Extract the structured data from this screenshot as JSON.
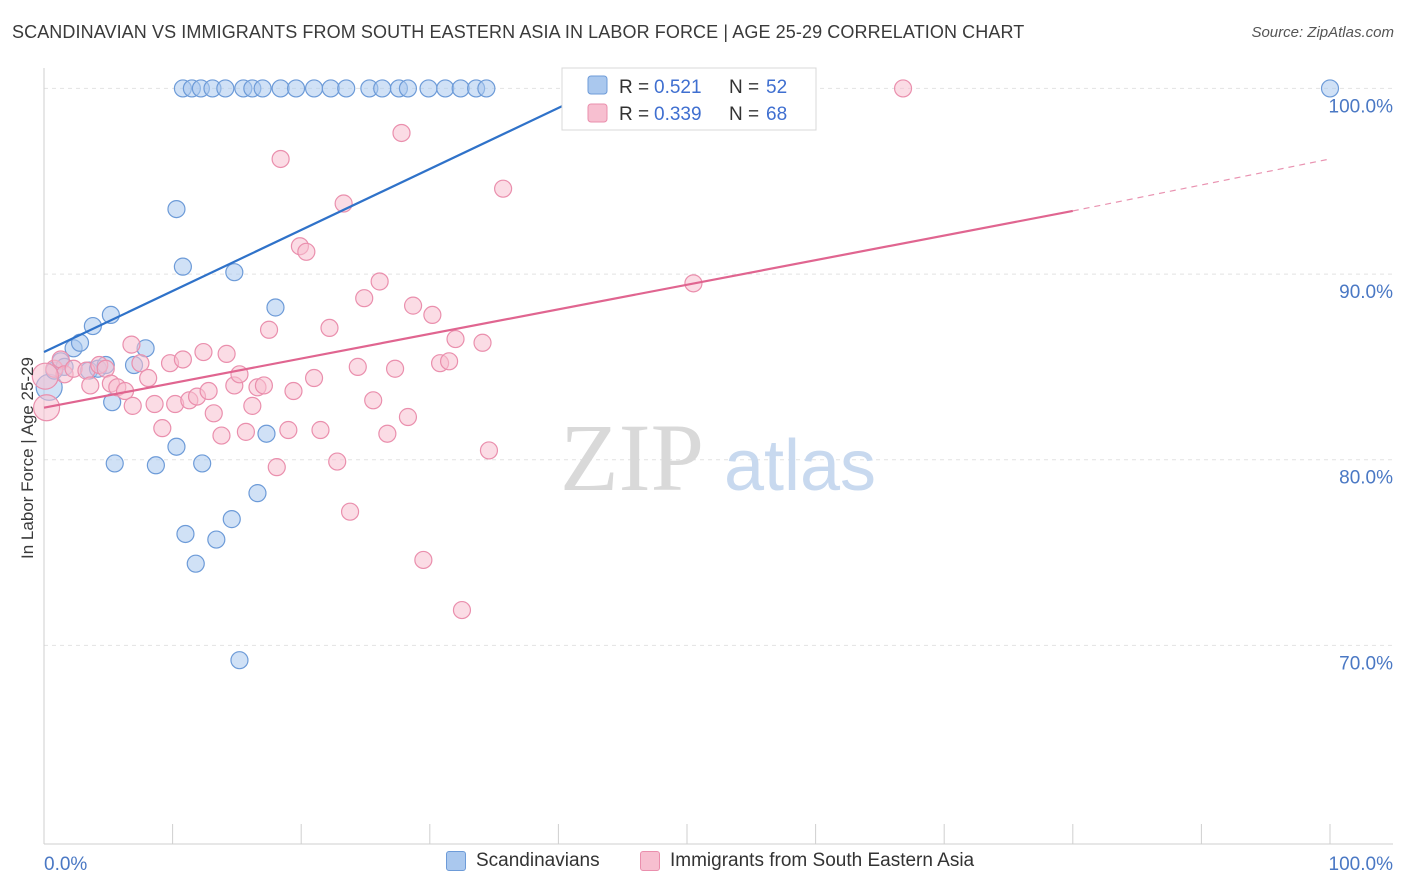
{
  "chart_data": {
    "type": "scatter",
    "title": "SCANDINAVIAN VS IMMIGRANTS FROM SOUTH EASTERN ASIA IN LABOR FORCE | AGE 25-29 CORRELATION CHART",
    "source": "Source: ZipAtlas.com",
    "ylabel": "In Labor Force | Age 25-29",
    "xlabel": "",
    "x_tick_labels": {
      "left": "0.0%",
      "right": "100.0%"
    },
    "y_ticks": [
      {
        "value": 100,
        "label": "100.0%"
      },
      {
        "value": 90,
        "label": "90.0%"
      },
      {
        "value": 80,
        "label": "80.0%"
      },
      {
        "value": 70,
        "label": "70.0%"
      }
    ],
    "xlim": [
      0,
      100
    ],
    "ylim": [
      59.3,
      101.1
    ],
    "watermark": {
      "part1": "ZIP",
      "part2": "atlas"
    },
    "legend_box": {
      "rows": [
        {
          "r_label": "R = ",
          "r_value": "0.521",
          "n_label": "N = ",
          "n_value": "52"
        },
        {
          "r_label": "R = ",
          "r_value": "0.339",
          "n_label": "N = ",
          "n_value": "68"
        }
      ]
    },
    "series": [
      {
        "name": "Scandinavians",
        "fill": "#aac8ee",
        "stroke": "#6d9bd8",
        "line_color": "#2f72c9",
        "trend": {
          "x0": 0,
          "y0": 85.8,
          "x1": 43.2,
          "y1": 100.0
        },
        "points": [
          [
            0.4,
            83.9
          ],
          [
            0.8,
            84.8
          ],
          [
            1.3,
            85.3
          ],
          [
            1.6,
            85.0
          ],
          [
            2.3,
            86.0
          ],
          [
            2.8,
            86.3
          ],
          [
            3.8,
            87.2
          ],
          [
            3.5,
            84.8
          ],
          [
            4.2,
            84.9
          ],
          [
            4.8,
            85.1
          ],
          [
            5.2,
            87.8
          ],
          [
            5.3,
            83.1
          ],
          [
            5.5,
            79.8
          ],
          [
            7.0,
            85.1
          ],
          [
            7.9,
            86.0
          ],
          [
            8.7,
            79.7
          ],
          [
            10.3,
            80.7
          ],
          [
            10.3,
            93.5
          ],
          [
            10.8,
            90.4
          ],
          [
            11.0,
            76.0
          ],
          [
            11.8,
            74.4
          ],
          [
            12.3,
            79.8
          ],
          [
            13.4,
            75.7
          ],
          [
            14.6,
            76.8
          ],
          [
            14.8,
            90.1
          ],
          [
            15.2,
            69.2
          ],
          [
            16.6,
            78.2
          ],
          [
            17.3,
            81.4
          ],
          [
            18.0,
            88.2
          ],
          [
            10.8,
            100.0
          ],
          [
            11.5,
            100.0
          ],
          [
            12.2,
            100.0
          ],
          [
            13.1,
            100.0
          ],
          [
            14.1,
            100.0
          ],
          [
            15.5,
            100.0
          ],
          [
            16.2,
            100.0
          ],
          [
            17.0,
            100.0
          ],
          [
            18.4,
            100.0
          ],
          [
            19.6,
            100.0
          ],
          [
            21.0,
            100.0
          ],
          [
            22.3,
            100.0
          ],
          [
            23.5,
            100.0
          ],
          [
            25.3,
            100.0
          ],
          [
            26.3,
            100.0
          ],
          [
            27.6,
            100.0
          ],
          [
            28.3,
            100.0
          ],
          [
            29.9,
            100.0
          ],
          [
            31.2,
            100.0
          ],
          [
            32.4,
            100.0
          ],
          [
            33.6,
            100.0
          ],
          [
            34.4,
            100.0
          ],
          [
            100.0,
            100.0
          ]
        ]
      },
      {
        "name": "Immigrants from South Eastern Asia",
        "fill": "#f7bfd0",
        "stroke": "#ea8fad",
        "line_color": "#e06590",
        "trend": {
          "x0": 0,
          "y0": 82.8,
          "x1": 80.0,
          "y1": 93.4
        },
        "trend_dashed": {
          "x0": 80.0,
          "y0": 93.4,
          "x1": 100.0,
          "y1": 96.2
        },
        "points": [
          [
            0.2,
            82.8
          ],
          [
            0.8,
            84.9
          ],
          [
            1.3,
            85.4
          ],
          [
            1.6,
            84.6
          ],
          [
            2.3,
            84.9
          ],
          [
            3.3,
            84.8
          ],
          [
            3.6,
            84.0
          ],
          [
            4.3,
            85.1
          ],
          [
            4.8,
            84.9
          ],
          [
            5.2,
            84.1
          ],
          [
            5.7,
            83.9
          ],
          [
            6.3,
            83.7
          ],
          [
            6.8,
            86.2
          ],
          [
            6.9,
            82.9
          ],
          [
            7.5,
            85.2
          ],
          [
            8.1,
            84.4
          ],
          [
            8.6,
            83.0
          ],
          [
            9.2,
            81.7
          ],
          [
            9.8,
            85.2
          ],
          [
            10.2,
            83.0
          ],
          [
            10.8,
            85.4
          ],
          [
            11.3,
            83.2
          ],
          [
            11.9,
            83.4
          ],
          [
            12.4,
            85.8
          ],
          [
            12.8,
            83.7
          ],
          [
            13.2,
            82.5
          ],
          [
            13.8,
            81.3
          ],
          [
            14.2,
            85.7
          ],
          [
            14.8,
            84.0
          ],
          [
            15.2,
            84.6
          ],
          [
            15.7,
            81.5
          ],
          [
            16.2,
            82.9
          ],
          [
            16.6,
            83.9
          ],
          [
            17.1,
            84.0
          ],
          [
            17.5,
            87.0
          ],
          [
            18.1,
            79.6
          ],
          [
            18.4,
            96.2
          ],
          [
            19.0,
            81.6
          ],
          [
            19.4,
            83.7
          ],
          [
            19.9,
            91.5
          ],
          [
            20.4,
            91.2
          ],
          [
            21.0,
            84.4
          ],
          [
            21.5,
            81.6
          ],
          [
            22.2,
            87.1
          ],
          [
            22.8,
            79.9
          ],
          [
            23.3,
            93.8
          ],
          [
            23.8,
            77.2
          ],
          [
            24.4,
            85.0
          ],
          [
            24.9,
            88.7
          ],
          [
            25.6,
            83.2
          ],
          [
            26.1,
            89.6
          ],
          [
            26.7,
            81.4
          ],
          [
            27.3,
            84.9
          ],
          [
            27.8,
            97.6
          ],
          [
            28.3,
            82.3
          ],
          [
            28.7,
            88.3
          ],
          [
            29.5,
            74.6
          ],
          [
            30.2,
            87.8
          ],
          [
            30.8,
            85.2
          ],
          [
            31.5,
            85.3
          ],
          [
            32.0,
            86.5
          ],
          [
            32.5,
            71.9
          ],
          [
            34.1,
            86.3
          ],
          [
            34.6,
            80.5
          ],
          [
            35.7,
            94.6
          ],
          [
            50.5,
            89.5
          ],
          [
            66.8,
            100.0
          ],
          [
            0.1,
            84.5
          ]
        ]
      }
    ]
  }
}
